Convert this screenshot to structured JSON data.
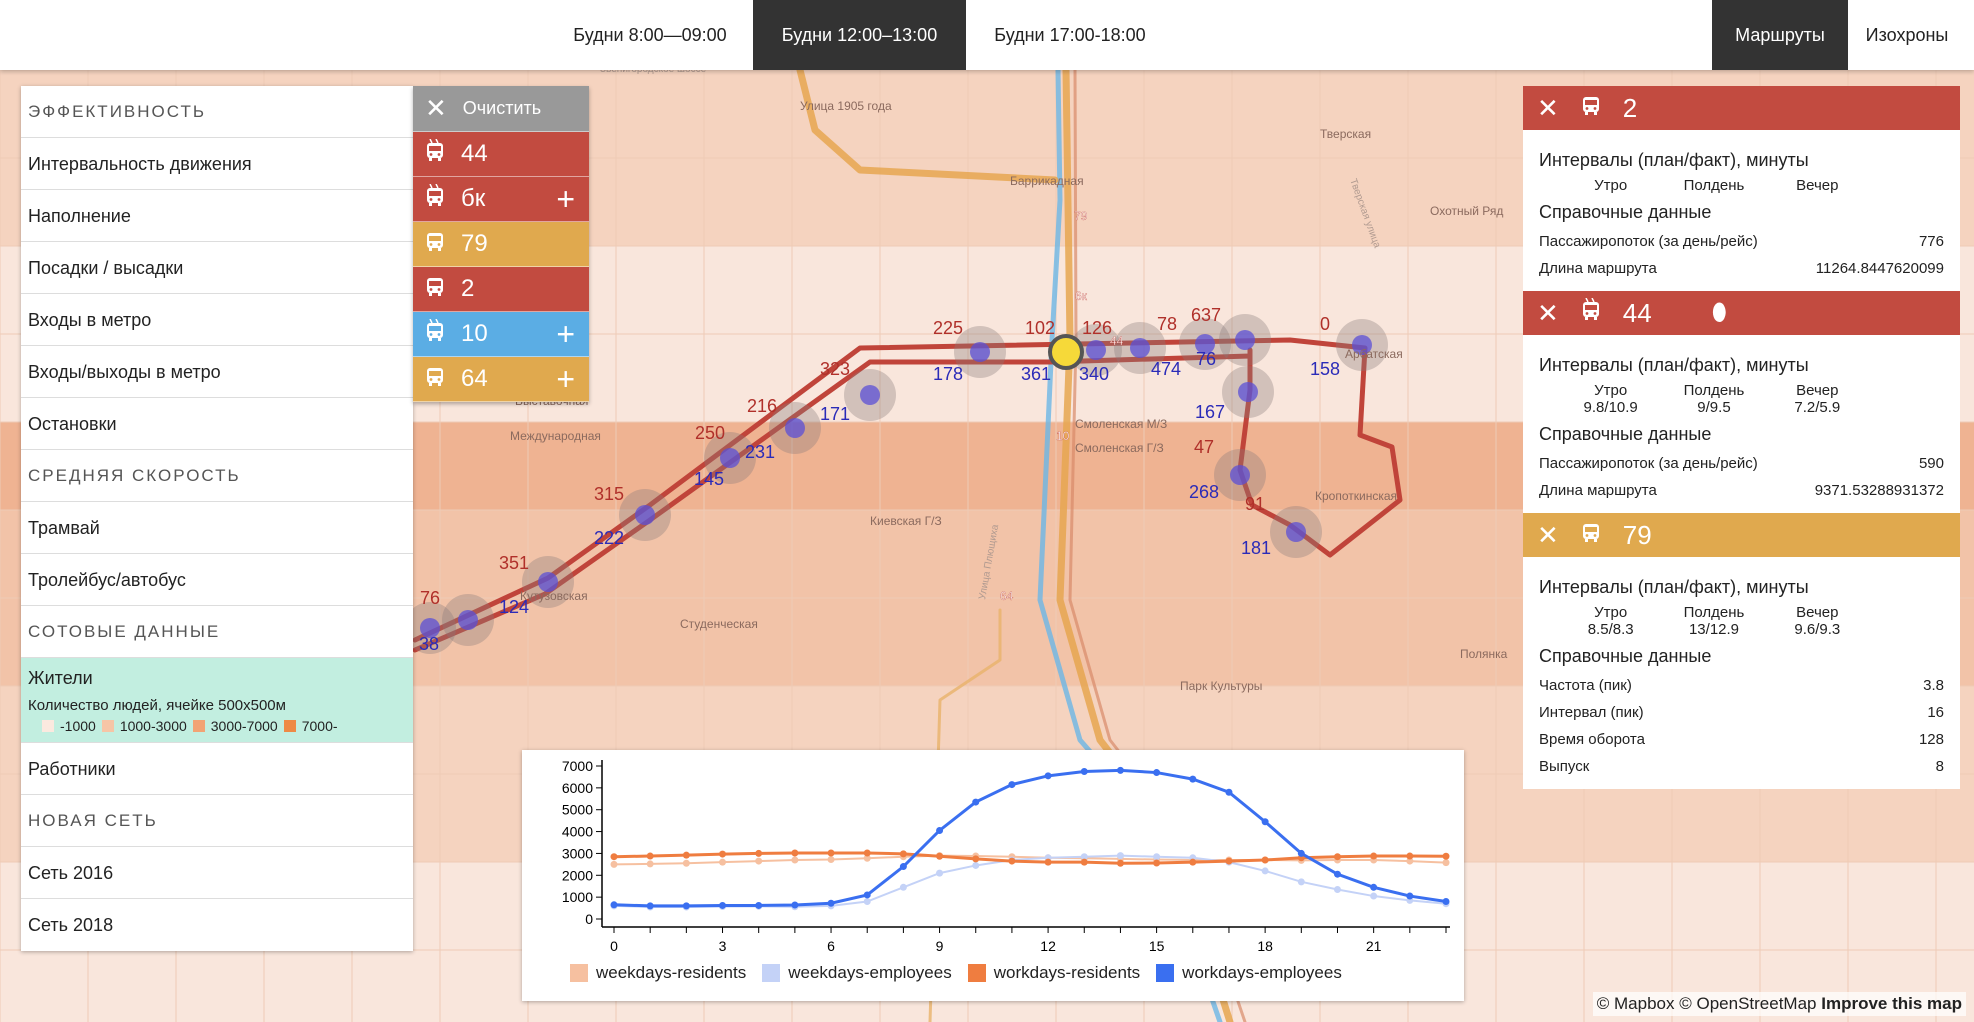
{
  "topbar": {
    "tabs": [
      {
        "label": "Будни 8:00—09:00",
        "active": false
      },
      {
        "label": "Будни 12:00–13:00",
        "active": true
      },
      {
        "label": "Будни 17:00-18:00",
        "active": false
      }
    ],
    "modes": [
      {
        "label": "Маршруты",
        "active": true
      },
      {
        "label": "Изохроны",
        "active": false
      }
    ]
  },
  "sidebar": {
    "sections": [
      {
        "header": "ЭФФЕКТИВНОСТЬ",
        "items": [
          "Интервальность движения",
          "Наполнение",
          "Посадки / высадки",
          "Входы в метро",
          "Входы/выходы в метро",
          "Остановки"
        ]
      },
      {
        "header": "СРЕДНЯЯ СКОРОСТЬ",
        "items": [
          "Трамвай",
          "Тролейбус/автобус"
        ]
      },
      {
        "header": "СОТОВЫЕ ДАННЫЕ",
        "items": [
          "Жители",
          "Работники"
        ]
      },
      {
        "header": "НОВАЯ СЕТЬ",
        "items": [
          "Сеть 2016",
          "Сеть 2018"
        ]
      }
    ],
    "active": {
      "title": "Жители",
      "subtitle": "Количество людей, ячейке 500x500м",
      "legend": [
        {
          "label": "-1000",
          "color": "#fbe9df"
        },
        {
          "label": "1000-3000",
          "color": "#f6c5a6"
        },
        {
          "label": "3000-7000",
          "color": "#f2a374"
        },
        {
          "label": "7000-",
          "color": "#ee8a45"
        }
      ]
    }
  },
  "routes": {
    "clear_label": "Очистить",
    "items": [
      {
        "num": "44",
        "type": "trolleybus",
        "color": "#c24b40",
        "plus": false
      },
      {
        "num": "бк",
        "type": "trolleybus",
        "color": "#c24b40",
        "plus": true
      },
      {
        "num": "79",
        "type": "bus",
        "color": "#e0a94e",
        "plus": false
      },
      {
        "num": "2",
        "type": "bus",
        "color": "#c24b40",
        "plus": false
      },
      {
        "num": "10",
        "type": "trolleybus",
        "color": "#5badE4",
        "plus": true
      },
      {
        "num": "64",
        "type": "bus",
        "color": "#e0a94e",
        "plus": true
      }
    ]
  },
  "cards": [
    {
      "num": "2",
      "type": "bus",
      "color": "#c24b40",
      "intervals_title": "Интервалы (план/факт), минуты",
      "periods": [
        "Утро",
        "Полдень",
        "Вечер"
      ],
      "values": [
        "",
        "",
        ""
      ],
      "ref_title": "Справочные данные",
      "rows": [
        {
          "k": "Пассажиропоток (за день/рейс)",
          "v": "776"
        },
        {
          "k": "Длина маршрута",
          "v": "11264.8447620099"
        }
      ]
    },
    {
      "num": "44",
      "type": "trolleybus",
      "color": "#c24b40",
      "intervals_title": "Интервалы (план/факт), минуты",
      "periods": [
        "Утро",
        "Полдень",
        "Вечер"
      ],
      "values": [
        "9.8/10.9",
        "9/9.5",
        "7.2/5.9"
      ],
      "ref_title": "Справочные данные",
      "rows": [
        {
          "k": "Пассажиропоток (за день/рейс)",
          "v": "590"
        },
        {
          "k": "Длина маршрута",
          "v": "9371.53288931372"
        }
      ]
    },
    {
      "num": "79",
      "type": "bus",
      "color": "#e0a94e",
      "intervals_title": "Интервалы (план/факт), минуты",
      "periods": [
        "Утро",
        "Полдень",
        "Вечер"
      ],
      "values": [
        "8.5/8.3",
        "13/12.9",
        "9.6/9.3"
      ],
      "ref_title": "Справочные данные",
      "rows": [
        {
          "k": "Частота (пик)",
          "v": "3.8"
        },
        {
          "k": "Интервал (пик)",
          "v": "16"
        },
        {
          "k": "Время оборота",
          "v": "128"
        },
        {
          "k": "Выпуск",
          "v": "8"
        }
      ]
    }
  ],
  "map": {
    "stations": [
      "Тверская",
      "Улица 1905 года",
      "Баррикадная",
      "Охотный Ряд",
      "Выставочная",
      "Международная",
      "Смоленская М/З",
      "Смоленская Г/З",
      "Киевская Г/З",
      "Кропоткинская",
      "Студенческая",
      "Кутузовская",
      "Парк Культуры",
      "Полянка",
      "Арбатская"
    ],
    "streets": [
      "Звенигородское шоссе",
      "Тверская улица",
      "Улица Плющиха"
    ],
    "stop_labels_red": [
      "76",
      "351",
      "315",
      "250",
      "216",
      "323",
      "225",
      "102",
      "126",
      "78",
      "637",
      "0",
      "47",
      "91"
    ],
    "stop_labels_blue": [
      "38",
      "124",
      "222",
      "145",
      "231",
      "171",
      "178",
      "361",
      "340",
      "474",
      "76",
      "158",
      "167",
      "268",
      "181"
    ],
    "route_badges": [
      "44",
      "6к",
      "79",
      "10",
      "64"
    ]
  },
  "attribution": {
    "mapbox": "© Mapbox",
    "osm": "© OpenStreetMap",
    "improve": "Improve this map"
  },
  "chart_data": {
    "type": "line",
    "x": [
      0,
      1,
      2,
      3,
      4,
      5,
      6,
      7,
      8,
      9,
      10,
      11,
      12,
      13,
      14,
      15,
      16,
      17,
      18,
      19,
      20,
      21,
      22,
      23
    ],
    "xticks": [
      0,
      3,
      6,
      9,
      12,
      15,
      18,
      21
    ],
    "yticks": [
      0,
      1000,
      2000,
      3000,
      4000,
      5000,
      6000,
      7000
    ],
    "ylim": [
      0,
      7000
    ],
    "series": [
      {
        "name": "weekdays-residents",
        "color": "#f6c0a0",
        "values": [
          2500,
          2520,
          2550,
          2600,
          2650,
          2700,
          2720,
          2780,
          2850,
          2900,
          2880,
          2850,
          2800,
          2780,
          2750,
          2720,
          2700,
          2700,
          2700,
          2680,
          2700,
          2700,
          2650,
          2580
        ]
      },
      {
        "name": "weekdays-employees",
        "color": "#c4d2f7",
        "values": [
          600,
          550,
          550,
          570,
          580,
          560,
          600,
          800,
          1450,
          2100,
          2450,
          2700,
          2800,
          2850,
          2900,
          2850,
          2800,
          2600,
          2200,
          1700,
          1350,
          1050,
          850,
          700
        ]
      },
      {
        "name": "workdays-residents",
        "color": "#ef7d40",
        "values": [
          2850,
          2880,
          2920,
          2970,
          3000,
          3020,
          3020,
          3020,
          2980,
          2870,
          2750,
          2650,
          2600,
          2600,
          2550,
          2560,
          2600,
          2650,
          2700,
          2800,
          2850,
          2880,
          2880,
          2870
        ]
      },
      {
        "name": "workdays-employees",
        "color": "#3a6ff0",
        "values": [
          650,
          600,
          600,
          620,
          620,
          640,
          720,
          1100,
          2400,
          4050,
          5350,
          6150,
          6550,
          6750,
          6800,
          6700,
          6400,
          5800,
          4450,
          3000,
          2050,
          1450,
          1050,
          800
        ]
      }
    ]
  }
}
